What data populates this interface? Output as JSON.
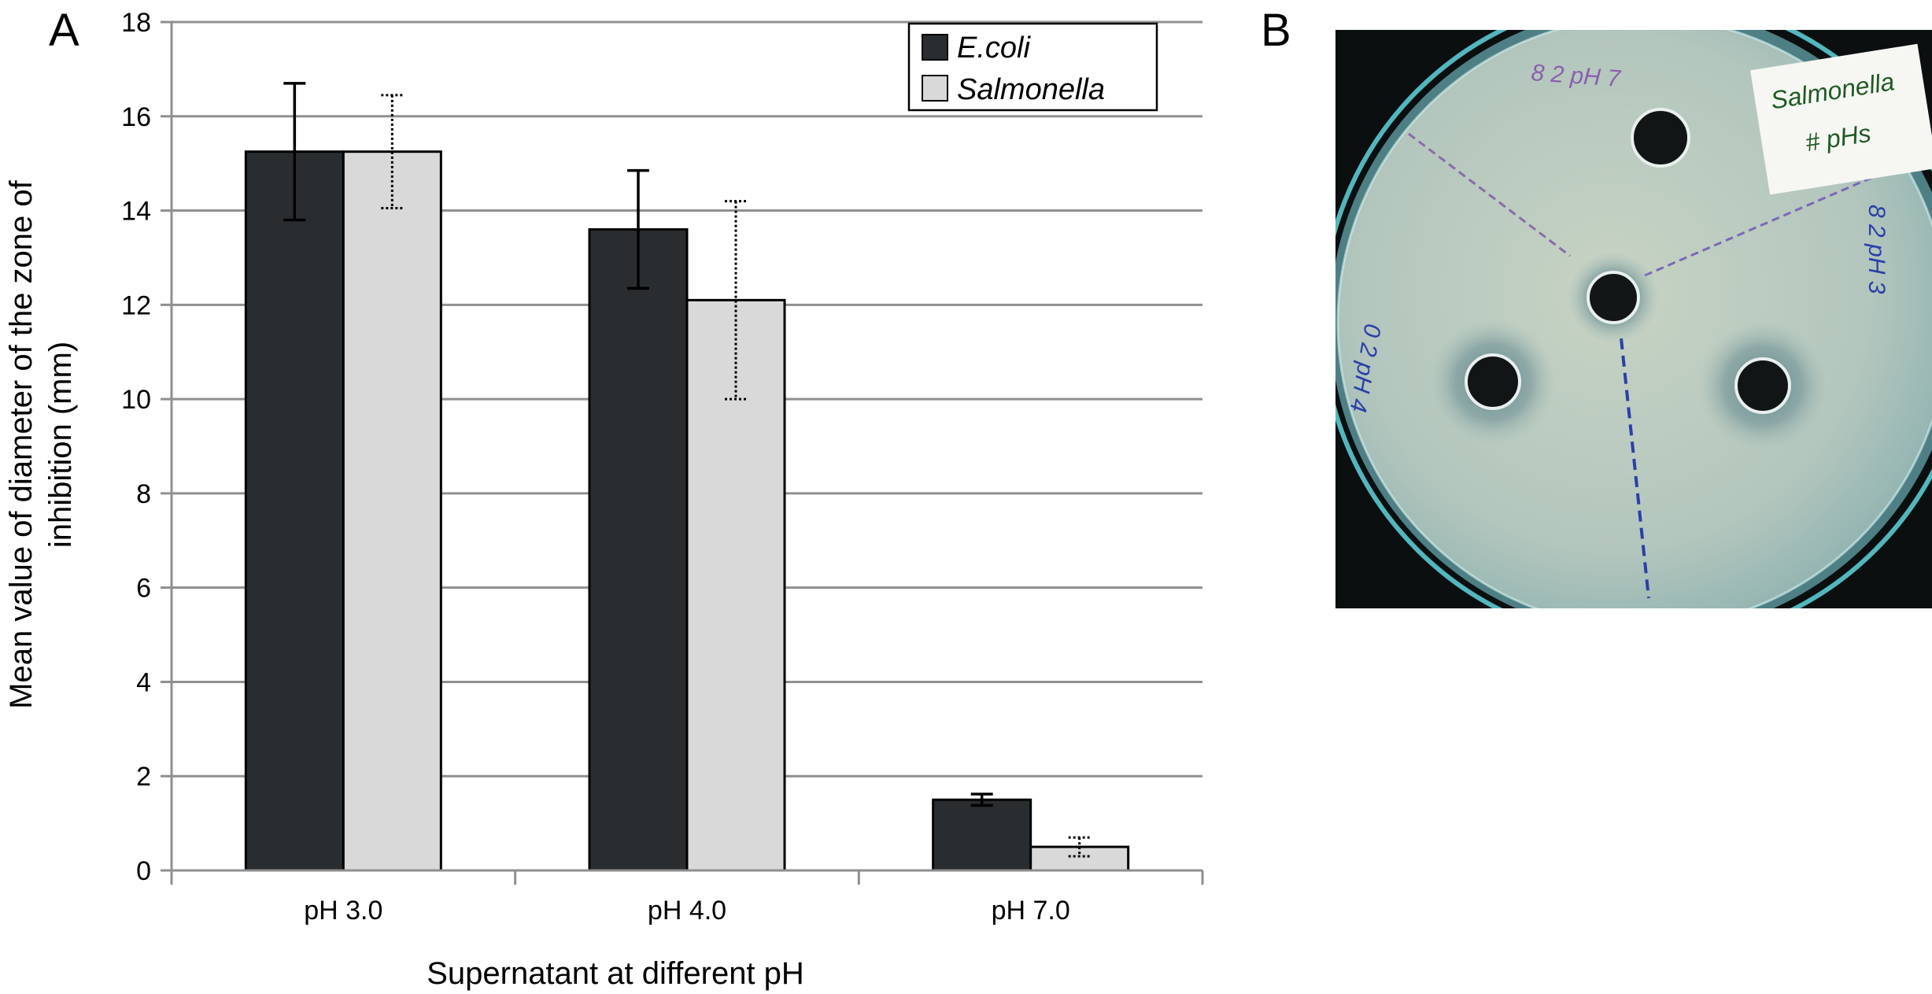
{
  "panels": {
    "left": "A",
    "right": "B"
  },
  "chart_data": {
    "type": "bar",
    "categories": [
      "pH 3.0",
      "pH 4.0",
      "pH 7.0"
    ],
    "series": [
      {
        "name": "E.coli",
        "values": [
          15.25,
          13.6,
          1.5
        ],
        "error": [
          1.45,
          1.25,
          0.12
        ],
        "color": "#2a2d2f",
        "errorStyle": "solid"
      },
      {
        "name": "Salmonella",
        "values": [
          15.25,
          12.1,
          0.5
        ],
        "error": [
          1.2,
          2.1,
          0.2
        ],
        "color": "#d8d9d8",
        "errorStyle": "dotted"
      }
    ],
    "xlabel": "Supernatant at different pH",
    "ylabel": [
      "Mean value of diameter of the zone of",
      "inhibition (mm)"
    ],
    "ylim": [
      0,
      18
    ],
    "yticks": [
      0,
      2,
      4,
      6,
      8,
      10,
      12,
      14,
      16,
      18
    ],
    "grid": true,
    "legend_position": "top-right"
  },
  "photo": {
    "annotations": [
      "8 2 pH 7",
      "8 2 pH 3",
      "0 2 pH 4"
    ],
    "note_label": [
      "Salmonella",
      "# pHs"
    ]
  }
}
